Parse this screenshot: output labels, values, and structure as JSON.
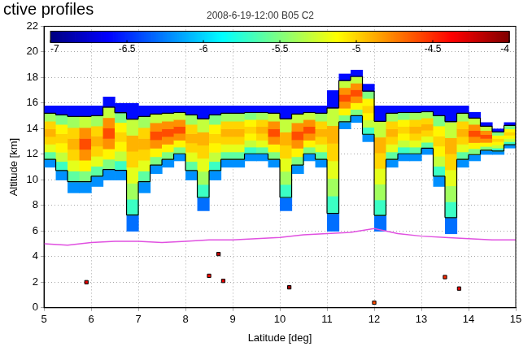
{
  "chart_data": {
    "type": "heatmap",
    "title": "2008-6-19-12:00 B05 C2",
    "annotation": "ctive profiles",
    "x_label": "Latitude [deg]",
    "y_label": "Altitude [km]",
    "xlim": [
      5,
      15
    ],
    "xticks": [
      5,
      6,
      7,
      8,
      9,
      10,
      11,
      12,
      13,
      14,
      15
    ],
    "ylim": [
      0,
      22
    ],
    "yticks": [
      0,
      2,
      4,
      6,
      8,
      10,
      12,
      14,
      16,
      18,
      20,
      22
    ],
    "grid": true,
    "colorbar": {
      "range": [
        -7,
        -4
      ],
      "ticks": [
        -7,
        -6.5,
        -6,
        -5.5,
        -5,
        -4.5,
        -4
      ]
    },
    "contour_level": -6,
    "cells": [
      {
        "lat": 5.125,
        "base": 11,
        "top": 15.8,
        "values": [
          -6.2,
          -5.6,
          -5.2,
          -5.0,
          -4.9,
          -5.0,
          -5.4,
          -6.6
        ]
      },
      {
        "lat": 5.375,
        "base": 10,
        "top": 15.8,
        "values": [
          -6.2,
          -5.7,
          -5.3,
          -5.1,
          -5.0,
          -5.1,
          -5.5,
          -6.6
        ]
      },
      {
        "lat": 5.625,
        "base": 9,
        "top": 15.8,
        "values": [
          -6.2,
          -5.6,
          -5.2,
          -5.0,
          -4.9,
          -5.0,
          -5.4,
          -6.6
        ]
      },
      {
        "lat": 5.875,
        "base": 9,
        "top": 15.8,
        "values": [
          -6.2,
          -5.5,
          -5.1,
          -4.8,
          -4.6,
          -4.8,
          -5.3,
          -6.6
        ]
      },
      {
        "lat": 6.125,
        "base": 9.5,
        "top": 15.8,
        "values": [
          -6.2,
          -5.6,
          -5.2,
          -5.0,
          -4.9,
          -5.0,
          -5.4,
          -6.6
        ]
      },
      {
        "lat": 6.375,
        "base": 10,
        "top": 16.5,
        "values": [
          -6.2,
          -5.5,
          -5.1,
          -4.8,
          -4.6,
          -4.8,
          -5.3,
          -6.6
        ]
      },
      {
        "lat": 6.625,
        "base": 10,
        "top": 16,
        "values": [
          -6.2,
          -5.7,
          -5.3,
          -5.1,
          -5.0,
          -5.1,
          -5.5,
          -6.6
        ]
      },
      {
        "lat": 6.875,
        "base": 6,
        "top": 16,
        "values": [
          -6.3,
          -5.7,
          -5.4,
          -5.2,
          -5.0,
          -4.9,
          -5.3,
          -6.6
        ]
      },
      {
        "lat": 7.125,
        "base": 9,
        "top": 15.8,
        "values": [
          -6.2,
          -5.6,
          -5.2,
          -5.0,
          -4.9,
          -5.0,
          -5.4,
          -6.6
        ]
      },
      {
        "lat": 7.375,
        "base": 10.5,
        "top": 15.8,
        "values": [
          -6.2,
          -5.5,
          -5.1,
          -4.8,
          -4.6,
          -4.8,
          -5.3,
          -6.6
        ]
      },
      {
        "lat": 7.625,
        "base": 11,
        "top": 15.8,
        "values": [
          -6.2,
          -5.5,
          -5.1,
          -4.8,
          -4.6,
          -4.8,
          -5.3,
          -6.6
        ]
      },
      {
        "lat": 7.875,
        "base": 11.5,
        "top": 15.8,
        "values": [
          -6.2,
          -5.5,
          -5.1,
          -4.8,
          -4.6,
          -4.8,
          -5.3,
          -6.6
        ]
      },
      {
        "lat": 8.125,
        "base": 10,
        "top": 15.8,
        "values": [
          -6.2,
          -5.6,
          -5.2,
          -5.0,
          -4.9,
          -5.0,
          -5.4,
          -6.6
        ]
      },
      {
        "lat": 8.375,
        "base": 7.6,
        "top": 15.8,
        "values": [
          -6.3,
          -5.7,
          -5.4,
          -5.2,
          -5.0,
          -4.9,
          -5.3,
          -6.6
        ]
      },
      {
        "lat": 8.625,
        "base": 10,
        "top": 15.8,
        "values": [
          -6.2,
          -5.7,
          -5.3,
          -5.1,
          -5.0,
          -5.1,
          -5.5,
          -6.6
        ]
      },
      {
        "lat": 8.875,
        "base": 11,
        "top": 15.8,
        "values": [
          -6.2,
          -5.6,
          -5.2,
          -5.0,
          -4.9,
          -5.0,
          -5.4,
          -6.6
        ]
      },
      {
        "lat": 9.125,
        "base": 11,
        "top": 15.8,
        "values": [
          -6.2,
          -5.6,
          -5.2,
          -5.0,
          -4.9,
          -5.0,
          -5.4,
          -6.6
        ]
      },
      {
        "lat": 9.375,
        "base": 11.5,
        "top": 15.8,
        "values": [
          -6.2,
          -5.7,
          -5.3,
          -5.1,
          -5.0,
          -5.1,
          -5.5,
          -6.6
        ]
      },
      {
        "lat": 9.625,
        "base": 11.5,
        "top": 15.8,
        "values": [
          -6.2,
          -5.6,
          -5.2,
          -5.0,
          -4.9,
          -5.0,
          -5.4,
          -6.6
        ]
      },
      {
        "lat": 9.875,
        "base": 11,
        "top": 15.8,
        "values": [
          -6.2,
          -5.5,
          -5.1,
          -4.8,
          -4.6,
          -4.8,
          -5.3,
          -6.6
        ]
      },
      {
        "lat": 10.125,
        "base": 7.6,
        "top": 15.8,
        "values": [
          -6.3,
          -5.7,
          -5.4,
          -5.2,
          -5.0,
          -4.9,
          -5.3,
          -6.6
        ]
      },
      {
        "lat": 10.375,
        "base": 10.5,
        "top": 15.8,
        "values": [
          -6.2,
          -5.5,
          -5.1,
          -4.8,
          -4.6,
          -4.8,
          -5.3,
          -6.6
        ]
      },
      {
        "lat": 10.625,
        "base": 11.5,
        "top": 15.8,
        "values": [
          -6.2,
          -5.5,
          -5.1,
          -4.8,
          -4.6,
          -4.8,
          -5.3,
          -6.6
        ]
      },
      {
        "lat": 10.875,
        "base": 11,
        "top": 15.8,
        "values": [
          -6.2,
          -5.6,
          -5.2,
          -5.0,
          -4.9,
          -5.0,
          -5.4,
          -6.6
        ]
      },
      {
        "lat": 11.125,
        "base": 6,
        "top": 17,
        "values": [
          -6.3,
          -5.7,
          -5.4,
          -5.2,
          -5.0,
          -4.9,
          -5.3,
          -6.6
        ]
      },
      {
        "lat": 11.375,
        "base": 14,
        "top": 18.3,
        "values": [
          -6.2,
          -5.5,
          -5.1,
          -4.8,
          -4.6,
          -4.8,
          -5.3,
          -6.6
        ]
      },
      {
        "lat": 11.625,
        "base": 14.5,
        "top": 18.6,
        "values": [
          -6.2,
          -5.5,
          -5.1,
          -4.8,
          -4.6,
          -4.8,
          -5.3,
          -6.6
        ]
      },
      {
        "lat": 11.875,
        "base": 13,
        "top": 17.5,
        "values": [
          -6.2,
          -5.7,
          -5.3,
          -5.1,
          -5.0,
          -5.1,
          -5.5,
          -6.6
        ]
      },
      {
        "lat": 12.125,
        "base": 6,
        "top": 15.8,
        "values": [
          -6.3,
          -5.7,
          -5.4,
          -5.2,
          -5.0,
          -4.9,
          -5.3,
          -6.6
        ]
      },
      {
        "lat": 12.375,
        "base": 11,
        "top": 15.8,
        "values": [
          -6.2,
          -5.6,
          -5.2,
          -5.0,
          -4.9,
          -5.0,
          -5.4,
          -6.6
        ]
      },
      {
        "lat": 12.625,
        "base": 11.5,
        "top": 15.8,
        "values": [
          -6.2,
          -5.7,
          -5.3,
          -5.1,
          -5.0,
          -5.1,
          -5.5,
          -6.6
        ]
      },
      {
        "lat": 12.875,
        "base": 11.5,
        "top": 15.8,
        "values": [
          -6.2,
          -5.6,
          -5.2,
          -5.0,
          -4.9,
          -5.0,
          -5.4,
          -6.6
        ]
      },
      {
        "lat": 13.125,
        "base": 12,
        "top": 15.8,
        "values": [
          -6.2,
          -5.6,
          -5.2,
          -5.0,
          -4.9,
          -5.0,
          -5.4,
          -6.6
        ]
      },
      {
        "lat": 13.375,
        "base": 9.5,
        "top": 15.8,
        "values": [
          -6.2,
          -5.7,
          -5.3,
          -5.1,
          -5.0,
          -5.1,
          -5.5,
          -6.6
        ]
      },
      {
        "lat": 13.625,
        "base": 5.8,
        "top": 15.8,
        "values": [
          -6.3,
          -5.7,
          -5.4,
          -5.2,
          -5.0,
          -4.9,
          -5.3,
          -6.6
        ]
      },
      {
        "lat": 13.875,
        "base": 11,
        "top": 15.8,
        "values": [
          -6.2,
          -5.6,
          -5.2,
          -5.0,
          -4.9,
          -5.0,
          -5.4,
          -6.6
        ]
      },
      {
        "lat": 14.125,
        "base": 11.5,
        "top": 15.3,
        "values": [
          -6.2,
          -5.5,
          -5.1,
          -4.8,
          -4.6,
          -4.8,
          -5.3,
          -6.6
        ]
      },
      {
        "lat": 14.375,
        "base": 12,
        "top": 14.5,
        "values": [
          -6.2,
          -5.5,
          -5.1,
          -4.8,
          -4.6,
          -4.8,
          -5.3,
          -6.6
        ]
      },
      {
        "lat": 14.625,
        "base": 12,
        "top": 14,
        "values": [
          -6.2,
          -5.7,
          -5.3,
          -5.1,
          -5.0,
          -5.1,
          -5.5,
          -6.6
        ]
      },
      {
        "lat": 14.875,
        "base": 12.5,
        "top": 14.5,
        "values": [
          -6.2,
          -5.7,
          -5.3,
          -5.1,
          -5.0,
          -5.1,
          -5.5,
          -6.6
        ]
      }
    ],
    "points": [
      {
        "lat": 5.9,
        "alt": 2.0,
        "value": -4.3
      },
      {
        "lat": 8.5,
        "alt": 2.5,
        "value": -4.4
      },
      {
        "lat": 8.7,
        "alt": 4.2,
        "value": -4.2
      },
      {
        "lat": 8.8,
        "alt": 2.1,
        "value": -4.3
      },
      {
        "lat": 10.2,
        "alt": 1.6,
        "value": -4.1
      },
      {
        "lat": 12.0,
        "alt": 0.4,
        "value": -4.6
      },
      {
        "lat": 13.5,
        "alt": 2.4,
        "value": -4.5
      },
      {
        "lat": 13.8,
        "alt": 1.5,
        "value": -4.3
      }
    ],
    "series": [
      {
        "color": "#e050e0",
        "x": [
          5,
          5.5,
          6,
          6.5,
          7,
          7.5,
          8,
          8.5,
          9,
          9.5,
          10,
          10.5,
          11,
          11.5,
          12,
          12.5,
          13,
          13.5,
          14,
          14.5,
          15
        ],
        "values": [
          5.0,
          4.9,
          5.1,
          5.2,
          5.2,
          5.1,
          5.2,
          5.3,
          5.3,
          5.4,
          5.5,
          5.7,
          5.8,
          5.9,
          6.2,
          5.8,
          5.6,
          5.5,
          5.4,
          5.3,
          5.3
        ]
      }
    ]
  }
}
